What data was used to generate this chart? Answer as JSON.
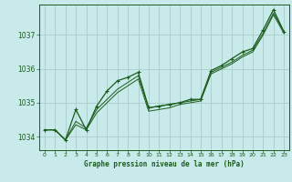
{
  "title": "Graphe pression niveau de la mer (hPa)",
  "bg_color": "#c8eaea",
  "grid_color": "#aacccc",
  "line_color": "#1a5c1a",
  "xlim": [
    -0.5,
    23.5
  ],
  "ylim": [
    1033.6,
    1037.9
  ],
  "xticks": [
    0,
    1,
    2,
    3,
    4,
    5,
    6,
    7,
    8,
    9,
    10,
    11,
    12,
    13,
    14,
    15,
    16,
    17,
    18,
    19,
    20,
    21,
    22,
    23
  ],
  "yticks": [
    1034,
    1035,
    1036,
    1037
  ],
  "series1": [
    1034.2,
    1034.2,
    1033.9,
    1034.45,
    1034.25,
    1034.8,
    1035.1,
    1035.4,
    1035.6,
    1035.8,
    1034.85,
    1034.9,
    1034.95,
    1035.0,
    1035.05,
    1035.1,
    1035.9,
    1036.05,
    1036.2,
    1036.4,
    1036.55,
    1037.05,
    1037.65,
    1037.1
  ],
  "series2": [
    1034.2,
    1034.2,
    1033.9,
    1034.35,
    1034.2,
    1034.7,
    1035.0,
    1035.3,
    1035.5,
    1035.7,
    1034.75,
    1034.8,
    1034.85,
    1034.95,
    1035.0,
    1035.05,
    1035.85,
    1036.0,
    1036.15,
    1036.35,
    1036.5,
    1037.0,
    1037.6,
    1037.05
  ],
  "main_series": [
    1034.2,
    1034.2,
    1033.9,
    1034.8,
    1034.2,
    1034.9,
    1035.35,
    1035.65,
    1035.75,
    1035.9,
    1034.85,
    1034.9,
    1034.95,
    1035.0,
    1035.1,
    1035.1,
    1035.95,
    1036.1,
    1036.3,
    1036.5,
    1036.6,
    1037.15,
    1037.75,
    1037.1
  ]
}
